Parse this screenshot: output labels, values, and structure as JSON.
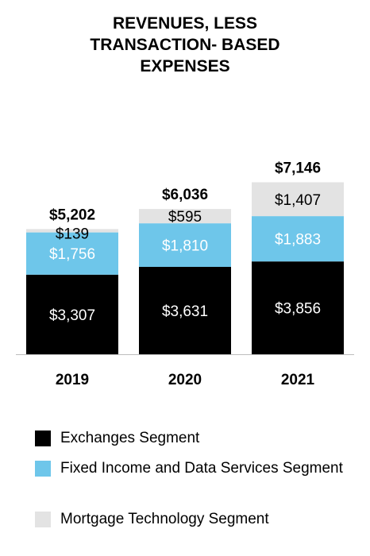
{
  "chart_data": {
    "type": "bar",
    "stacked": true,
    "title_lines": [
      "REVENUES, LESS",
      "TRANSACTION- BASED",
      "EXPENSES"
    ],
    "categories": [
      "2019",
      "2020",
      "2021"
    ],
    "series": [
      {
        "name": "Exchanges Segment",
        "values": [
          3307,
          3631,
          3856
        ],
        "labels": [
          "$3,307",
          "$3,631",
          "$3,856"
        ],
        "color": "#000000",
        "label_color": "#ffffff"
      },
      {
        "name": "Fixed Income and Data Services Segment",
        "values": [
          1756,
          1810,
          1883
        ],
        "labels": [
          "$1,756",
          "$1,810",
          "$1,883"
        ],
        "color": "#6ec6ea",
        "label_color": "#ffffff"
      },
      {
        "name": "Mortgage Technology Segment",
        "values": [
          139,
          595,
          1407
        ],
        "labels": [
          "$139",
          "$595",
          "$1,407"
        ],
        "color": "#e3e3e3",
        "label_color": "#000000"
      }
    ],
    "totals": [
      5202,
      6036,
      7146
    ],
    "total_labels": [
      "$5,202",
      "$6,036",
      "$7,146"
    ],
    "legend": {
      "position": "bottom"
    },
    "grid": false
  }
}
